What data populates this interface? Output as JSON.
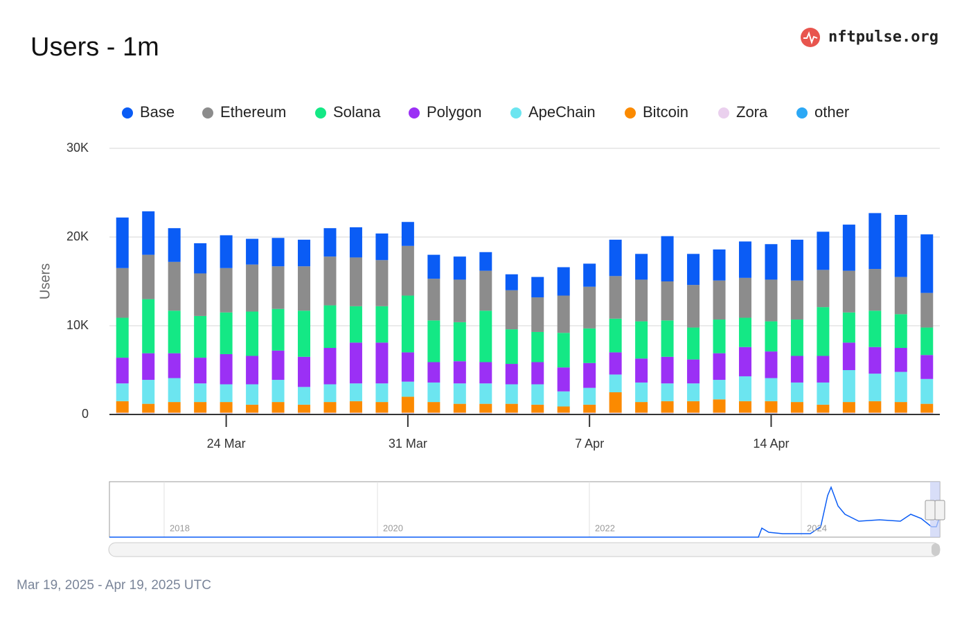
{
  "header": {
    "title": "Users - 1m",
    "brand": "nftpulse.org"
  },
  "chart_data": {
    "type": "bar",
    "stacked": true,
    "categories": [
      null,
      null,
      null,
      null,
      "24 Mar",
      null,
      null,
      null,
      null,
      null,
      null,
      "31 Mar",
      null,
      null,
      null,
      null,
      null,
      null,
      "7 Apr",
      null,
      null,
      null,
      null,
      null,
      null,
      "14 Apr",
      null,
      null,
      null,
      null,
      null,
      null
    ],
    "ylabel": "Users",
    "ylim": [
      0,
      30000
    ],
    "yticks": [
      0,
      {
        "value": 10000,
        "label": "10K"
      },
      {
        "value": 20000,
        "label": "20K"
      },
      {
        "value": 30000,
        "label": "30K"
      }
    ],
    "grid": true,
    "series": [
      {
        "name": "Base",
        "color": "#0a5cf5",
        "values": [
          5700,
          4900,
          3800,
          3400,
          3700,
          2900,
          3200,
          3000,
          3200,
          3400,
          3000,
          2700,
          2700,
          2600,
          2100,
          1800,
          2300,
          3200,
          2600,
          4100,
          2900,
          5100,
          3500,
          3500,
          4100,
          4000,
          4600,
          4300,
          5200,
          6300,
          7000,
          6600
        ]
      },
      {
        "name": "Ethereum",
        "color": "#8c8c8c",
        "values": [
          5600,
          5000,
          5500,
          4800,
          5000,
          5300,
          4800,
          5000,
          5500,
          5500,
          5200,
          5600,
          4700,
          4800,
          4500,
          4400,
          3900,
          4200,
          4700,
          4800,
          4700,
          4400,
          4800,
          4400,
          4500,
          4700,
          4400,
          4200,
          4700,
          4700,
          4200,
          3900
        ]
      },
      {
        "name": "Solana",
        "color": "#14e885",
        "values": [
          4500,
          6100,
          4800,
          4700,
          4700,
          5000,
          4700,
          5200,
          4800,
          4100,
          4100,
          6400,
          4700,
          4400,
          5800,
          3900,
          3400,
          3900,
          3900,
          3800,
          4200,
          4100,
          3600,
          3800,
          3300,
          3400,
          4100,
          5500,
          3400,
          4100,
          3800,
          3100
        ]
      },
      {
        "name": "Polygon",
        "color": "#9b30f5",
        "values": [
          2900,
          3000,
          2800,
          2900,
          3400,
          3200,
          3300,
          3400,
          4100,
          4600,
          4600,
          3300,
          2300,
          2500,
          2400,
          2300,
          2500,
          2700,
          2800,
          2500,
          2700,
          3000,
          2700,
          3000,
          3300,
          3000,
          3000,
          3000,
          3100,
          3000,
          2700,
          2700
        ]
      },
      {
        "name": "ApeChain",
        "color": "#6ce5f0",
        "values": [
          2000,
          2700,
          2700,
          2100,
          2000,
          2300,
          2500,
          2000,
          2000,
          2000,
          2100,
          1700,
          2200,
          2300,
          2300,
          2200,
          2300,
          1700,
          1900,
          2000,
          2200,
          2000,
          2000,
          2200,
          2800,
          2600,
          2200,
          2500,
          3600,
          3100,
          3400,
          2800
        ]
      },
      {
        "name": "Bitcoin",
        "color": "#fb8a00",
        "values": [
          1300,
          1000,
          1200,
          1200,
          1200,
          900,
          1200,
          900,
          1200,
          1300,
          1200,
          1800,
          1200,
          1000,
          1000,
          1000,
          900,
          700,
          900,
          2300,
          1200,
          1300,
          1300,
          1500,
          1300,
          1300,
          1200,
          900,
          1200,
          1300,
          1200,
          1000
        ]
      },
      {
        "name": "Zora",
        "color": "#ead0ee",
        "values": [
          100,
          100,
          100,
          100,
          100,
          100,
          100,
          100,
          100,
          100,
          100,
          100,
          100,
          100,
          100,
          100,
          100,
          100,
          100,
          100,
          100,
          100,
          100,
          100,
          100,
          100,
          100,
          100,
          100,
          100,
          100,
          100
        ]
      },
      {
        "name": "other",
        "color": "#2ca8f5",
        "values": [
          100,
          100,
          100,
          100,
          100,
          100,
          100,
          100,
          100,
          100,
          100,
          100,
          100,
          100,
          100,
          100,
          100,
          100,
          100,
          100,
          100,
          100,
          100,
          100,
          100,
          100,
          100,
          100,
          100,
          100,
          100,
          100
        ]
      }
    ]
  },
  "navigator": {
    "labels": [
      "2018",
      "2020",
      "2022",
      "2024"
    ]
  },
  "footer": {
    "range": "Mar 19, 2025 - Apr 19, 2025 UTC"
  }
}
